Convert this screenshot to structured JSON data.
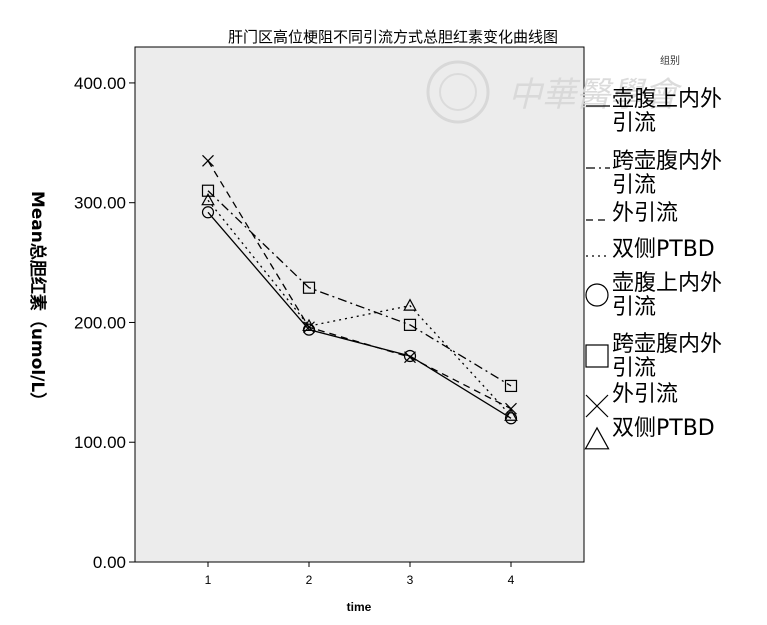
{
  "chart_data": {
    "type": "line",
    "title": "肝门区高位梗阻不同引流方式总胆红素变化曲线图",
    "xlabel": "time",
    "ylabel": "Mean总胆红素（umol/L）",
    "categories": [
      "1",
      "2",
      "3",
      "4"
    ],
    "ylim": [
      0,
      430
    ],
    "yticks": [
      "0.00",
      "100.00",
      "200.00",
      "300.00",
      "400.00"
    ],
    "grid": false,
    "legend_title": "组别",
    "legend_position": "right",
    "series": [
      {
        "name": "壶腹上内外引流",
        "values": [
          292,
          194,
          172,
          120
        ],
        "dash": "solid",
        "marker": "circle"
      },
      {
        "name": "跨壶腹内外引流",
        "values": [
          310,
          229,
          198,
          147
        ],
        "dash": "dashdot",
        "marker": "square"
      },
      {
        "name": "外引流",
        "values": [
          335,
          196,
          171,
          128
        ],
        "dash": "dash",
        "marker": "x"
      },
      {
        "name": "双侧PTBD",
        "values": [
          302,
          197,
          214,
          122
        ],
        "dash": "dot",
        "marker": "triangle"
      }
    ],
    "colors": {
      "plot_bg": "#ececec",
      "line": "#000000"
    }
  },
  "watermark": {
    "text": "中華醫學會"
  }
}
